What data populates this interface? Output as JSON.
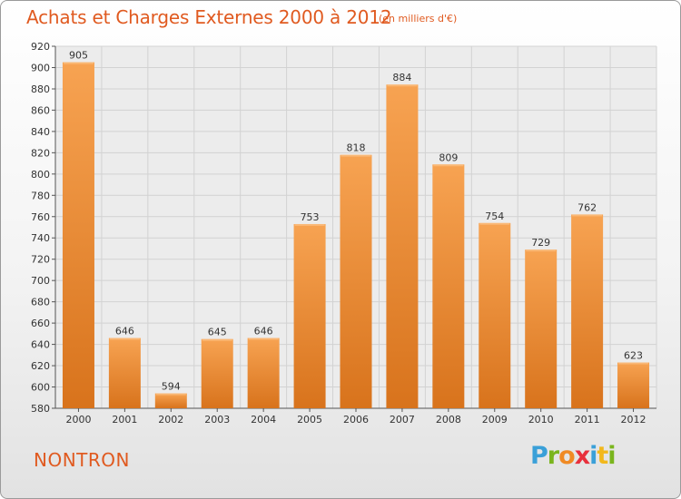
{
  "header": {
    "title": "Achats et Charges Externes 2000 à 2012",
    "unit": "(en milliers d'€)"
  },
  "footer": {
    "city": "NONTRON",
    "logo": {
      "letters": [
        "P",
        "r",
        "o",
        "x",
        "i",
        "t",
        "i"
      ],
      "colors": [
        "#3aa0d8",
        "#7ab51d",
        "#f08a24",
        "#e8303c",
        "#3aa0d8",
        "#f2b81c",
        "#7ab51d"
      ]
    }
  },
  "colors": {
    "accent": "#e05a20",
    "bar_light": "#f7a352",
    "bar_dark": "#d8731c"
  },
  "chart_data": {
    "type": "bar",
    "title": "Achats et Charges Externes 2000 à 2012",
    "categories": [
      "2000",
      "2001",
      "2002",
      "2003",
      "2004",
      "2005",
      "2006",
      "2007",
      "2008",
      "2009",
      "2010",
      "2011",
      "2012"
    ],
    "values": [
      905,
      646,
      594,
      645,
      646,
      753,
      818,
      884,
      809,
      754,
      729,
      762,
      623
    ],
    "ylim": [
      580,
      920
    ],
    "yticks": [
      580,
      600,
      620,
      640,
      660,
      680,
      700,
      720,
      740,
      760,
      780,
      800,
      820,
      840,
      860,
      880,
      900,
      920
    ],
    "grid": true,
    "xlabel": "",
    "ylabel": ""
  }
}
